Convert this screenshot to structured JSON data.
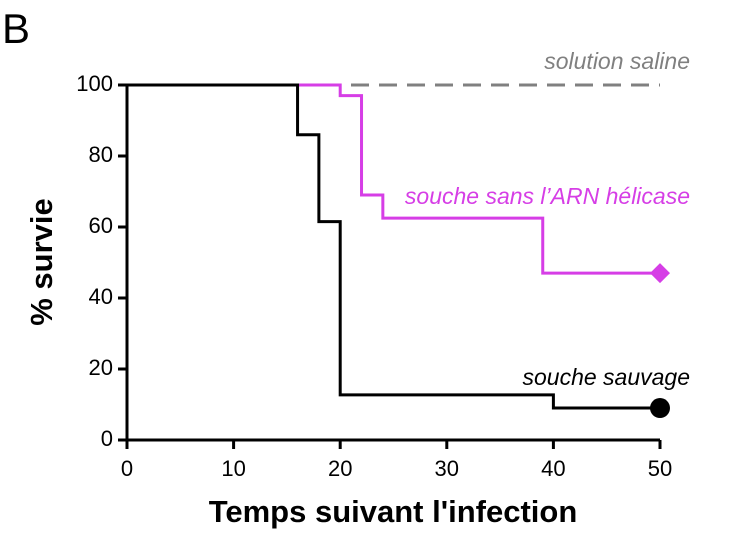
{
  "chart_data": {
    "type": "step",
    "panel": "B",
    "xlabel": "Temps suivant l'infection",
    "ylabel": "% survie",
    "xlim": [
      0,
      50
    ],
    "xticks": [
      0,
      10,
      20,
      30,
      40,
      50
    ],
    "ylim": [
      0,
      100
    ],
    "yticks": [
      0,
      20,
      40,
      60,
      80,
      100
    ],
    "grid": false,
    "series": [
      {
        "name": "solution saline",
        "color": "#808080",
        "dash": true,
        "marker": "none",
        "x": [
          0,
          50
        ],
        "values": [
          100,
          100
        ]
      },
      {
        "name": "souche sans l’ARN hélicase",
        "color": "#d63ee6",
        "dash": false,
        "marker": "diamond",
        "x": [
          0,
          20,
          22,
          24,
          39,
          50
        ],
        "values": [
          100,
          97,
          69,
          62.5,
          47,
          47
        ]
      },
      {
        "name": "souche sauvage",
        "color": "#000000",
        "dash": false,
        "marker": "circle",
        "x": [
          0,
          16,
          18,
          20,
          40,
          50
        ],
        "values": [
          100,
          86,
          61.5,
          12.7,
          9,
          9
        ]
      }
    ]
  }
}
